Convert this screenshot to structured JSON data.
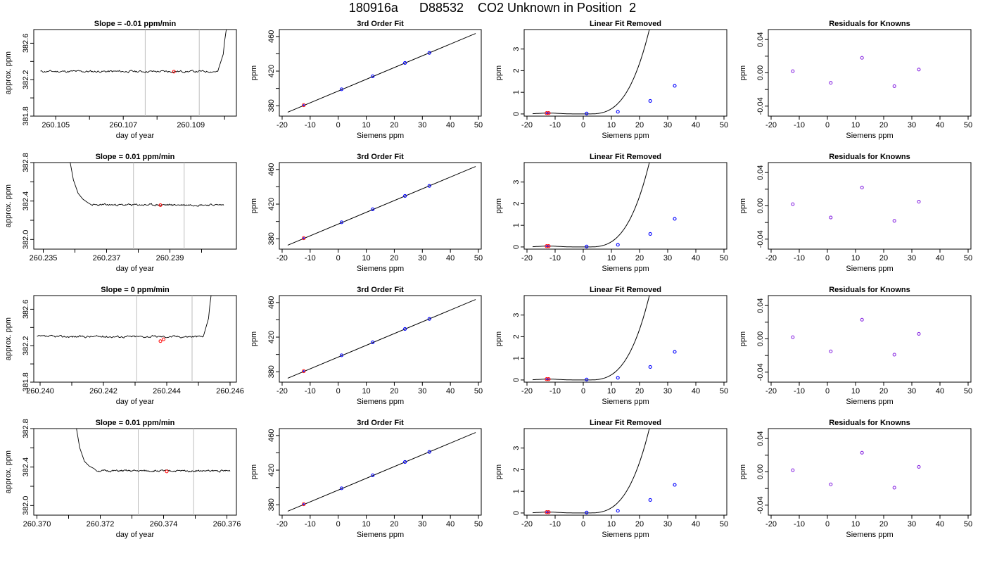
{
  "page": {
    "title": "180916a      D88532    CO2 Unknown in Position  2"
  },
  "colors": {
    "axis": "#000000",
    "trace": "#000000",
    "marker_red": "#ff0000",
    "marker_blue": "#0000ff",
    "marker_purple": "#8a2be2",
    "vline": "#bebebe"
  },
  "common": {
    "fit_title": "3rd Order Fit",
    "linfit_title": "Linear Fit Removed",
    "resid_title": "Residuals for Knowns",
    "xlabel_siemens": "Siemens ppm",
    "ylabel_ppm": "ppm",
    "xlabel_time": "day of year",
    "ylabel_time": "approx. ppm"
  },
  "chart_data": [
    {
      "row": 1,
      "type": "line",
      "title": "Slope =  -0.01  ppm/min",
      "xlabel": "day of year",
      "ylabel": "approx. ppm",
      "xlim": [
        260.10435,
        260.11035
      ],
      "ylim": [
        381.8,
        382.75
      ],
      "x_ticks": [
        260.105,
        260.106,
        260.107,
        260.108,
        260.109,
        260.11
      ],
      "x_tick_labels": [
        "260.105",
        "",
        "260.107",
        "",
        "260.109",
        ""
      ],
      "y_ticks": [
        381.8,
        382.0,
        382.2,
        382.4,
        382.6
      ],
      "y_tick_labels": [
        "381.8",
        "",
        "382.2",
        "",
        "382.6"
      ],
      "trace": {
        "x_start": 260.10455,
        "x_end": 260.1098,
        "level": 382.29,
        "jitter": 0.012,
        "seed": 11,
        "tail": {
          "x": [
            260.10982,
            260.10996,
            260.11,
            260.11005
          ],
          "y": [
            382.32,
            382.48,
            382.62,
            382.75
          ]
        }
      },
      "vlines": [
        260.10765,
        260.10925
      ],
      "markers": [
        {
          "x": 260.1085,
          "y": 382.288
        }
      ]
    },
    {
      "row": 2,
      "type": "line",
      "title": "Slope =  0.01  ppm/min",
      "xlabel": "day of year",
      "ylabel": "approx. ppm",
      "xlim": [
        260.2347,
        260.2411
      ],
      "ylim": [
        381.9,
        382.8
      ],
      "x_ticks": [
        260.235,
        260.236,
        260.237,
        260.238,
        260.239,
        260.24
      ],
      "x_tick_labels": [
        "260.235",
        "",
        "260.237",
        "",
        "260.239",
        ""
      ],
      "y_ticks": [
        382.0,
        382.2,
        382.4,
        382.6,
        382.8
      ],
      "y_tick_labels": [
        "382.0",
        "",
        "382.4",
        "",
        "382.8"
      ],
      "trace": {
        "x_start": 260.23655,
        "x_end": 260.2407,
        "level": 382.36,
        "jitter": 0.01,
        "seed": 23,
        "head": {
          "x": [
            260.23585,
            260.23595,
            260.2361,
            260.23625,
            260.2364
          ],
          "y": [
            382.8,
            382.62,
            382.48,
            382.42,
            382.385
          ]
        }
      },
      "vlines": [
        260.23785,
        260.23945
      ],
      "markers": [
        {
          "x": 260.2387,
          "y": 382.357
        }
      ]
    },
    {
      "row": 3,
      "type": "line",
      "title": "Slope =  0  ppm/min",
      "xlabel": "day of year",
      "ylabel": "approx. ppm",
      "xlim": [
        260.2398,
        260.2462
      ],
      "ylim": [
        381.8,
        382.75
      ],
      "x_ticks": [
        260.24,
        260.241,
        260.242,
        260.243,
        260.244,
        260.245,
        260.246
      ],
      "x_tick_labels": [
        "260.240",
        "",
        "260.242",
        "",
        "260.244",
        "",
        "260.246"
      ],
      "y_ticks": [
        381.8,
        382.0,
        382.2,
        382.4,
        382.6
      ],
      "y_tick_labels": [
        "381.8",
        "",
        "382.2",
        "",
        "382.6"
      ],
      "trace": {
        "x_start": 260.2399,
        "x_end": 260.24515,
        "level": 382.3,
        "jitter": 0.012,
        "seed": 37,
        "tail": {
          "x": [
            260.24518,
            260.24532,
            260.24536,
            260.2454
          ],
          "y": [
            382.33,
            382.5,
            382.64,
            382.75
          ]
        }
      },
      "vlines": [
        260.24305,
        260.2448
      ],
      "markers": [
        {
          "x": 260.2439,
          "y": 382.27
        },
        {
          "x": 260.2438,
          "y": 382.25
        }
      ]
    },
    {
      "row": 4,
      "type": "line",
      "title": "Slope =  0.01  ppm/min",
      "xlabel": "day of year",
      "ylabel": "approx. ppm",
      "xlim": [
        260.3699,
        260.3763
      ],
      "ylim": [
        381.9,
        382.8
      ],
      "x_ticks": [
        260.37,
        260.371,
        260.372,
        260.373,
        260.374,
        260.375,
        260.376
      ],
      "x_tick_labels": [
        "260.370",
        "",
        "260.372",
        "",
        "260.374",
        "",
        "260.376"
      ],
      "y_ticks": [
        382.0,
        382.2,
        382.4,
        382.6,
        382.8
      ],
      "y_tick_labels": [
        "382.0",
        "",
        "382.4",
        "",
        "382.8"
      ],
      "trace": {
        "x_start": 260.3719,
        "x_end": 260.3761,
        "level": 382.36,
        "jitter": 0.01,
        "seed": 51,
        "head": {
          "x": [
            260.37125,
            260.37135,
            260.3715,
            260.37165,
            260.3718
          ],
          "y": [
            382.8,
            382.6,
            382.46,
            382.41,
            382.385
          ]
        }
      },
      "vlines": [
        260.3732,
        260.37495
      ],
      "markers": [
        {
          "x": 260.3741,
          "y": 382.355
        }
      ]
    },
    {
      "row": 1,
      "type": "line",
      "title": "3rd Order Fit",
      "xlabel": "Siemens ppm",
      "ylabel": "ppm",
      "xlim": [
        -21,
        51
      ],
      "ylim": [
        368,
        468
      ],
      "x_ticks": [
        -20,
        -10,
        0,
        10,
        20,
        30,
        40,
        50
      ],
      "y_ticks": [
        380,
        400,
        420,
        440,
        460
      ],
      "y_tick_labels": [
        "380",
        "",
        "420",
        "",
        "460"
      ],
      "line": {
        "x": [
          -18,
          49
        ],
        "y": [
          372.5,
          463.5
        ]
      },
      "points": [
        {
          "x": -12.3,
          "y": 380.7,
          "c": "red"
        },
        {
          "x": 1.2,
          "y": 399.0
        },
        {
          "x": 12.3,
          "y": 414.0
        },
        {
          "x": 23.8,
          "y": 429.4
        },
        {
          "x": 32.5,
          "y": 441.0
        }
      ]
    },
    {
      "row": 2,
      "type": "line",
      "title": "3rd Order Fit",
      "xlabel": "Siemens ppm",
      "ylabel": "ppm",
      "xlim": [
        -21,
        51
      ],
      "ylim": [
        368,
        468
      ],
      "x_ticks": [
        -20,
        -10,
        0,
        10,
        20,
        30,
        40,
        50
      ],
      "y_ticks": [
        380,
        400,
        420,
        440,
        460
      ],
      "y_tick_labels": [
        "380",
        "",
        "420",
        "",
        "460"
      ],
      "line": {
        "x": [
          -18,
          49
        ],
        "y": [
          372.5,
          463.5
        ]
      },
      "points": [
        {
          "x": -12.3,
          "y": 380.7,
          "c": "red"
        },
        {
          "x": 1.2,
          "y": 399.0
        },
        {
          "x": 12.3,
          "y": 414.0
        },
        {
          "x": 23.8,
          "y": 429.4
        },
        {
          "x": 32.5,
          "y": 441.0
        }
      ]
    },
    {
      "row": 3,
      "type": "line",
      "title": "3rd Order Fit",
      "xlabel": "Siemens ppm",
      "ylabel": "ppm",
      "xlim": [
        -21,
        51
      ],
      "ylim": [
        368,
        468
      ],
      "x_ticks": [
        -20,
        -10,
        0,
        10,
        20,
        30,
        40,
        50
      ],
      "y_ticks": [
        380,
        400,
        420,
        440,
        460
      ],
      "y_tick_labels": [
        "380",
        "",
        "420",
        "",
        "460"
      ],
      "line": {
        "x": [
          -18,
          49
        ],
        "y": [
          372.5,
          463.5
        ]
      },
      "points": [
        {
          "x": -12.3,
          "y": 380.7,
          "c": "red"
        },
        {
          "x": 1.2,
          "y": 399.0
        },
        {
          "x": 12.3,
          "y": 414.0
        },
        {
          "x": 23.8,
          "y": 429.4
        },
        {
          "x": 32.5,
          "y": 441.0
        }
      ]
    },
    {
      "row": 4,
      "type": "line",
      "title": "3rd Order Fit",
      "xlabel": "Siemens ppm",
      "ylabel": "ppm",
      "xlim": [
        -21,
        51
      ],
      "ylim": [
        368,
        468
      ],
      "x_ticks": [
        -20,
        -10,
        0,
        10,
        20,
        30,
        40,
        50
      ],
      "y_ticks": [
        380,
        400,
        420,
        440,
        460
      ],
      "y_tick_labels": [
        "380",
        "",
        "420",
        "",
        "460"
      ],
      "line": {
        "x": [
          -18,
          49
        ],
        "y": [
          372.5,
          463.5
        ]
      },
      "points": [
        {
          "x": -12.3,
          "y": 380.7,
          "c": "red"
        },
        {
          "x": 1.2,
          "y": 399.0
        },
        {
          "x": 12.3,
          "y": 414.0
        },
        {
          "x": 23.8,
          "y": 429.4
        },
        {
          "x": 32.5,
          "y": 441.0
        }
      ]
    },
    {
      "row": 1,
      "type": "line",
      "title": "Linear Fit Removed",
      "xlabel": "Siemens ppm",
      "ylabel": "ppm",
      "xlim": [
        -21,
        51
      ],
      "ylim": [
        -0.1,
        3.9
      ],
      "x_ticks": [
        -20,
        -10,
        0,
        10,
        20,
        30,
        40,
        50
      ],
      "y_ticks": [
        0,
        1,
        2,
        3
      ],
      "curve": {
        "x0": 1.2,
        "c": 0.0003525,
        "x_start": -18,
        "x_end": 49,
        "bump_x": -12.3,
        "bump_h": 0.04
      },
      "points": [
        {
          "x": -12.3,
          "y": 0.04,
          "c": "red"
        },
        {
          "x": -13.0,
          "y": 0.04,
          "c": "red"
        },
        {
          "x": 1.2,
          "y": 0.02
        },
        {
          "x": 12.3,
          "y": 0.1
        },
        {
          "x": 23.8,
          "y": 0.6
        },
        {
          "x": 32.5,
          "y": 1.3
        }
      ]
    },
    {
      "row": 2,
      "type": "line",
      "title": "Linear Fit Removed",
      "xlabel": "Siemens ppm",
      "ylabel": "ppm",
      "xlim": [
        -21,
        51
      ],
      "ylim": [
        -0.1,
        3.9
      ],
      "x_ticks": [
        -20,
        -10,
        0,
        10,
        20,
        30,
        40,
        50
      ],
      "y_ticks": [
        0,
        1,
        2,
        3
      ],
      "curve": {
        "x0": 1.2,
        "c": 0.0003525,
        "x_start": -18,
        "x_end": 49,
        "bump_x": -12.3,
        "bump_h": 0.04
      },
      "points": [
        {
          "x": -12.3,
          "y": 0.04,
          "c": "red"
        },
        {
          "x": -13.0,
          "y": 0.04,
          "c": "red"
        },
        {
          "x": 1.2,
          "y": 0.02
        },
        {
          "x": 12.3,
          "y": 0.1
        },
        {
          "x": 23.8,
          "y": 0.6
        },
        {
          "x": 32.5,
          "y": 1.3
        }
      ]
    },
    {
      "row": 3,
      "type": "line",
      "title": "Linear Fit Removed",
      "xlabel": "Siemens ppm",
      "ylabel": "ppm",
      "xlim": [
        -21,
        51
      ],
      "ylim": [
        -0.1,
        3.9
      ],
      "x_ticks": [
        -20,
        -10,
        0,
        10,
        20,
        30,
        40,
        50
      ],
      "y_ticks": [
        0,
        1,
        2,
        3
      ],
      "curve": {
        "x0": 1.2,
        "c": 0.0003525,
        "x_start": -18,
        "x_end": 49,
        "bump_x": -12.3,
        "bump_h": 0.04
      },
      "points": [
        {
          "x": -12.3,
          "y": 0.04,
          "c": "red"
        },
        {
          "x": -13.0,
          "y": 0.04,
          "c": "red"
        },
        {
          "x": 1.2,
          "y": 0.02
        },
        {
          "x": 12.3,
          "y": 0.1
        },
        {
          "x": 23.8,
          "y": 0.6
        },
        {
          "x": 32.5,
          "y": 1.3
        }
      ]
    },
    {
      "row": 4,
      "type": "line",
      "title": "Linear Fit Removed",
      "xlabel": "Siemens ppm",
      "ylabel": "ppm",
      "xlim": [
        -21,
        51
      ],
      "ylim": [
        -0.1,
        3.9
      ],
      "x_ticks": [
        -20,
        -10,
        0,
        10,
        20,
        30,
        40,
        50
      ],
      "y_ticks": [
        0,
        1,
        2,
        3
      ],
      "curve": {
        "x0": 1.2,
        "c": 0.0003525,
        "x_start": -18,
        "x_end": 49,
        "bump_x": -12.3,
        "bump_h": 0.04
      },
      "points": [
        {
          "x": -12.3,
          "y": 0.04,
          "c": "red"
        },
        {
          "x": -13.0,
          "y": 0.04,
          "c": "red"
        },
        {
          "x": 1.2,
          "y": 0.02
        },
        {
          "x": 12.3,
          "y": 0.1
        },
        {
          "x": 23.8,
          "y": 0.6
        },
        {
          "x": 32.5,
          "y": 1.3
        }
      ]
    },
    {
      "row": 1,
      "type": "scatter",
      "title": "Residuals for Knowns",
      "xlabel": "Siemens ppm",
      "ylabel": "ppm",
      "xlim": [
        -21,
        51
      ],
      "ylim": [
        -0.052,
        0.052
      ],
      "x_ticks": [
        -20,
        -10,
        0,
        10,
        20,
        30,
        40,
        50
      ],
      "y_ticks": [
        -0.04,
        -0.02,
        0.0,
        0.02,
        0.04
      ],
      "y_tick_labels": [
        "-0.04",
        "",
        "0.00",
        "",
        "0.04"
      ],
      "points": [
        {
          "x": -12.3,
          "y": 0.002
        },
        {
          "x": 1.2,
          "y": -0.012
        },
        {
          "x": 12.3,
          "y": 0.018
        },
        {
          "x": 23.8,
          "y": -0.016
        },
        {
          "x": 32.5,
          "y": 0.004
        }
      ]
    },
    {
      "row": 2,
      "type": "scatter",
      "title": "Residuals for Knowns",
      "xlabel": "Siemens ppm",
      "ylabel": "ppm",
      "xlim": [
        -21,
        51
      ],
      "ylim": [
        -0.052,
        0.052
      ],
      "x_ticks": [
        -20,
        -10,
        0,
        10,
        20,
        30,
        40,
        50
      ],
      "y_ticks": [
        -0.04,
        -0.02,
        0.0,
        0.02,
        0.04
      ],
      "y_tick_labels": [
        "-0.04",
        "",
        "0.00",
        "",
        "0.04"
      ],
      "points": [
        {
          "x": -12.3,
          "y": 0.002
        },
        {
          "x": 1.2,
          "y": -0.014
        },
        {
          "x": 12.3,
          "y": 0.022
        },
        {
          "x": 23.8,
          "y": -0.018
        },
        {
          "x": 32.5,
          "y": 0.005
        }
      ]
    },
    {
      "row": 3,
      "type": "scatter",
      "title": "Residuals for Knowns",
      "xlabel": "Siemens ppm",
      "ylabel": "ppm",
      "xlim": [
        -21,
        51
      ],
      "ylim": [
        -0.052,
        0.052
      ],
      "x_ticks": [
        -20,
        -10,
        0,
        10,
        20,
        30,
        40,
        50
      ],
      "y_ticks": [
        -0.04,
        -0.02,
        0.0,
        0.02,
        0.04
      ],
      "y_tick_labels": [
        "-0.04",
        "",
        "0.00",
        "",
        "0.04"
      ],
      "points": [
        {
          "x": -12.3,
          "y": 0.002
        },
        {
          "x": 1.2,
          "y": -0.015
        },
        {
          "x": 12.3,
          "y": 0.023
        },
        {
          "x": 23.8,
          "y": -0.019
        },
        {
          "x": 32.5,
          "y": 0.006
        }
      ]
    },
    {
      "row": 4,
      "type": "scatter",
      "title": "Residuals for Knowns",
      "xlabel": "Siemens ppm",
      "ylabel": "ppm",
      "xlim": [
        -21,
        51
      ],
      "ylim": [
        -0.052,
        0.052
      ],
      "x_ticks": [
        -20,
        -10,
        0,
        10,
        20,
        30,
        40,
        50
      ],
      "y_ticks": [
        -0.04,
        -0.02,
        0.0,
        0.02,
        0.04
      ],
      "y_tick_labels": [
        "-0.04",
        "",
        "0.00",
        "",
        "0.04"
      ],
      "points": [
        {
          "x": -12.3,
          "y": 0.002
        },
        {
          "x": 1.2,
          "y": -0.015
        },
        {
          "x": 12.3,
          "y": 0.023
        },
        {
          "x": 23.8,
          "y": -0.019
        },
        {
          "x": 32.5,
          "y": 0.006
        }
      ]
    }
  ]
}
